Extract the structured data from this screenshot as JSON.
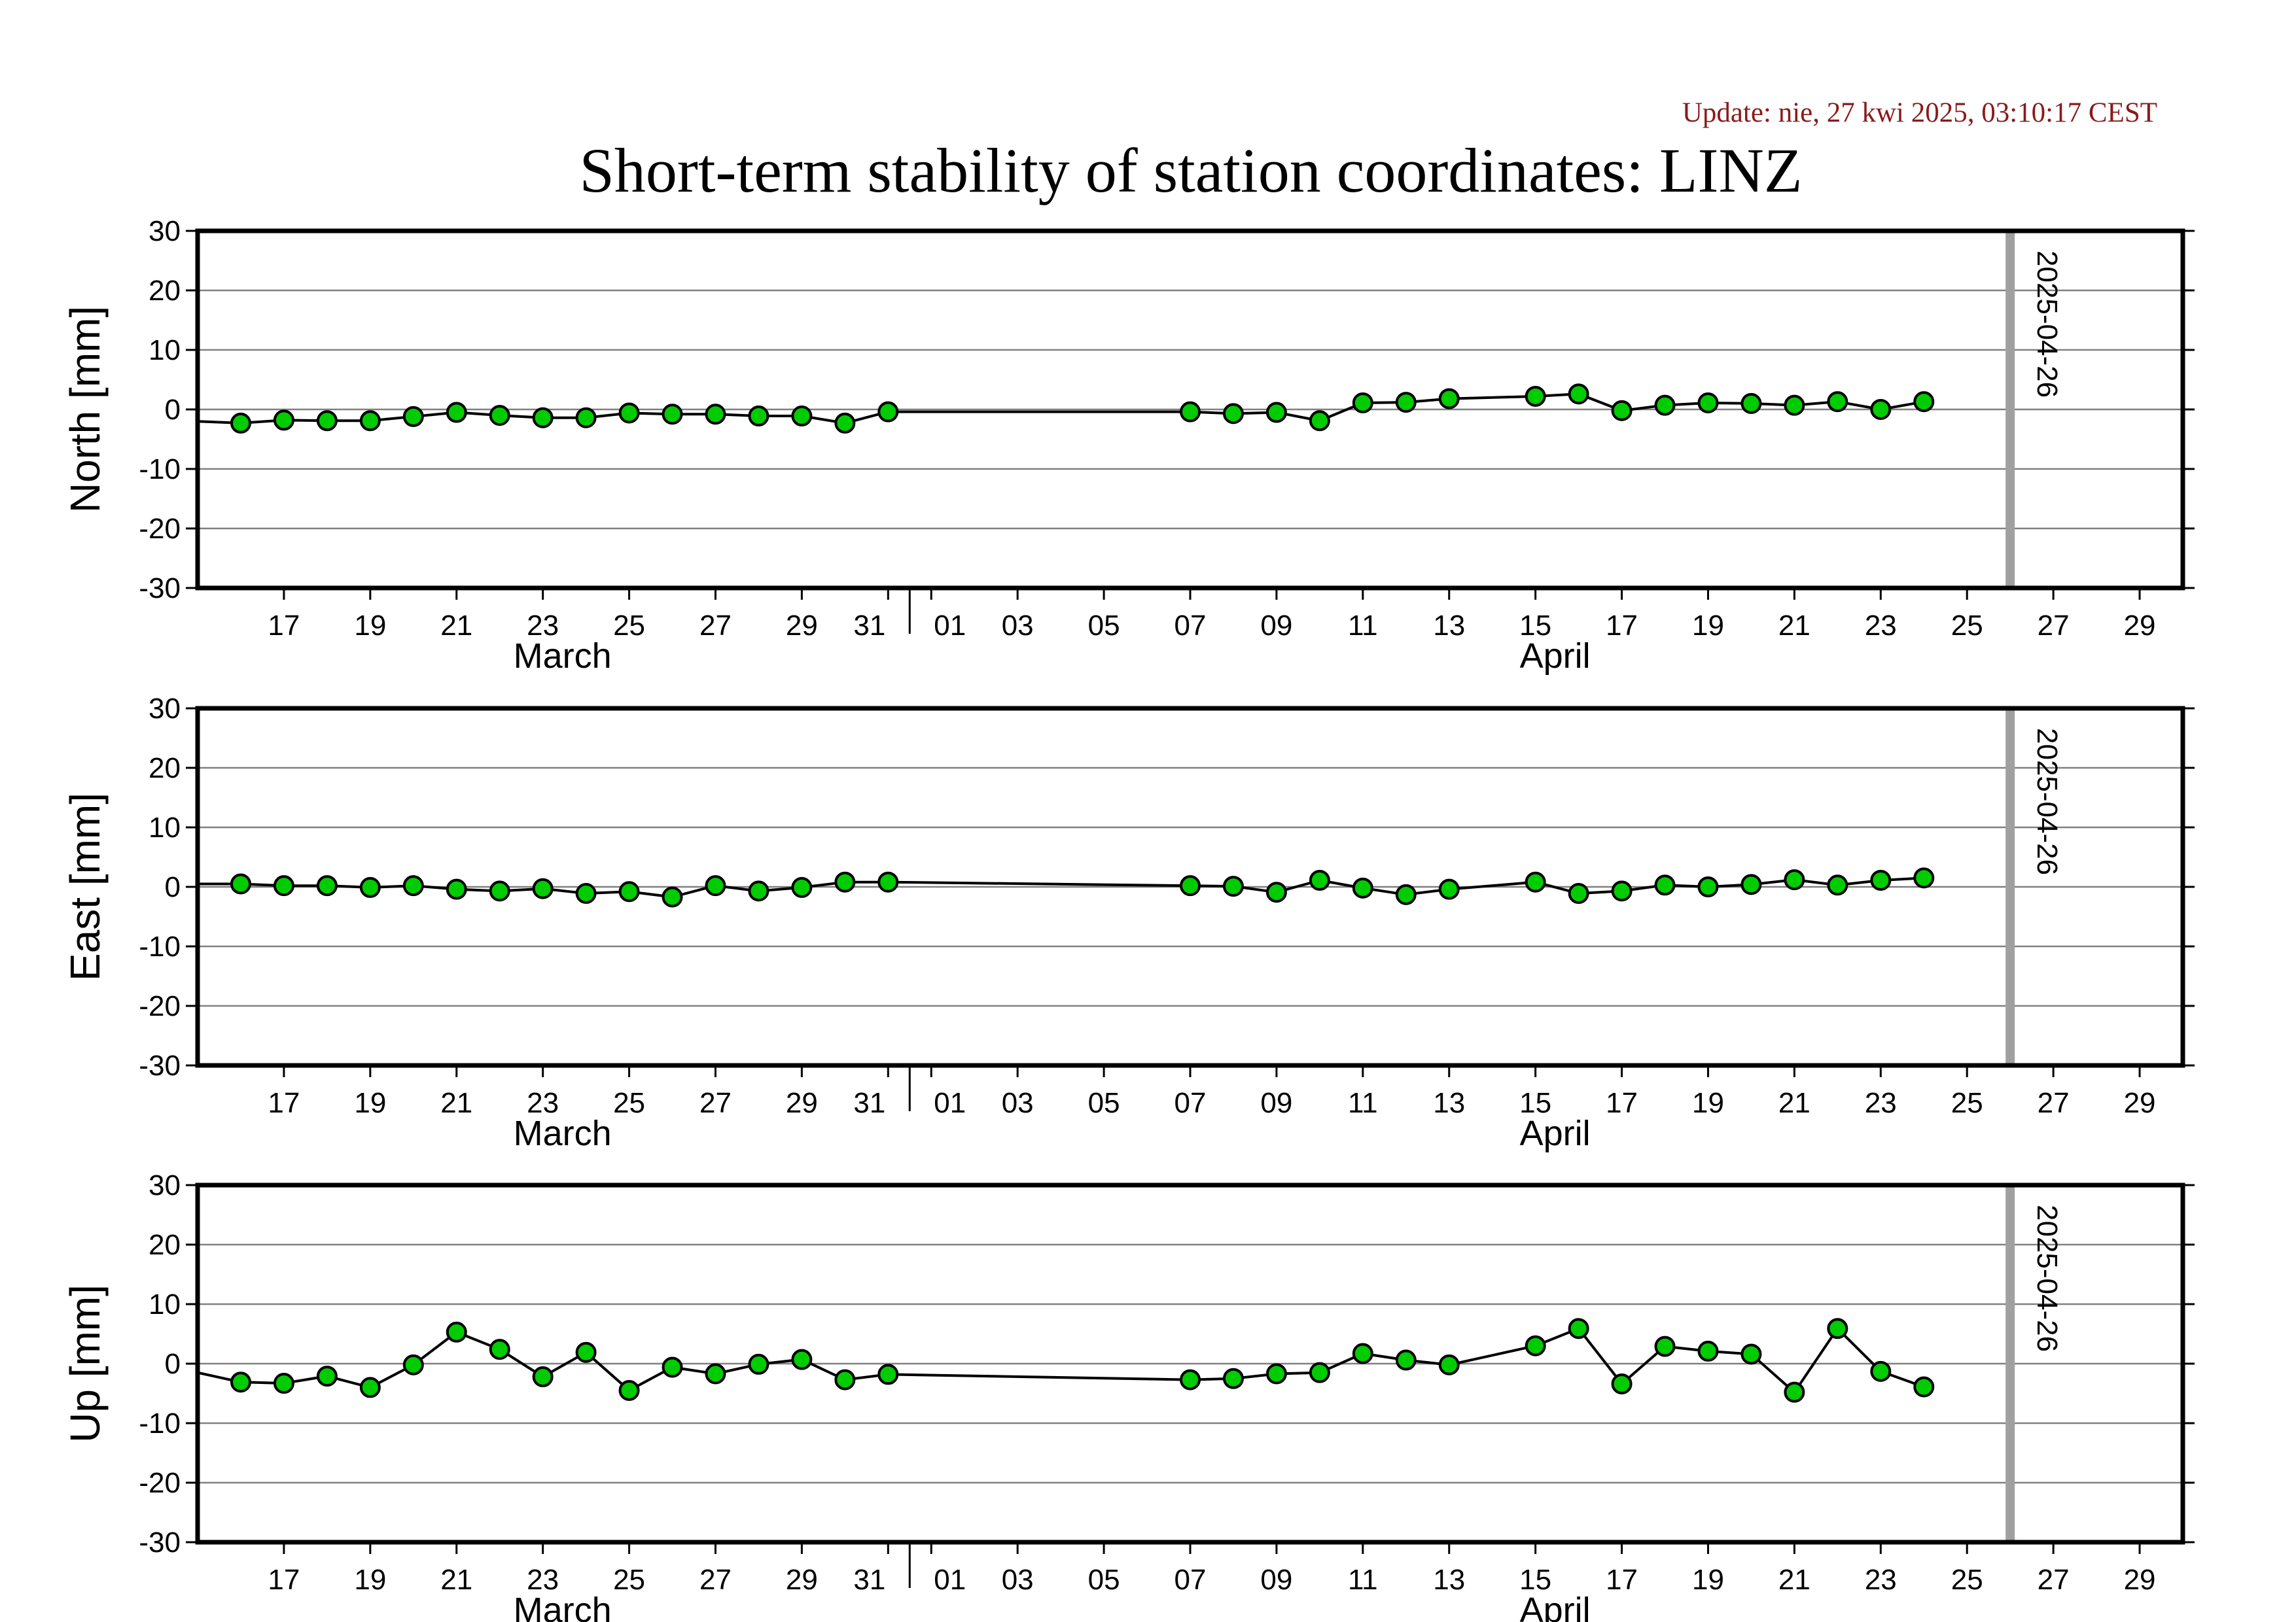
{
  "update_text": "Update: nie, 27 kwi 2025, 03:10:17 CEST",
  "title": "Short-term stability of station coordinates: LINZ",
  "colors": {
    "marker_fill": "#00cc00",
    "marker_stroke": "#000000",
    "line": "#000000",
    "grid": "#808080",
    "date_marker": "#a0a0a0",
    "update_text": "#8b1a1a"
  },
  "chart_data": {
    "type": "line",
    "x_axis": {
      "start": "2025-03-15",
      "end": "2025-04-30",
      "tick_labels": [
        {
          "date": "2025-03-17",
          "label": "17"
        },
        {
          "date": "2025-03-19",
          "label": "19"
        },
        {
          "date": "2025-03-21",
          "label": "21"
        },
        {
          "date": "2025-03-23",
          "label": "23"
        },
        {
          "date": "2025-03-25",
          "label": "25"
        },
        {
          "date": "2025-03-27",
          "label": "27"
        },
        {
          "date": "2025-03-29",
          "label": "29"
        },
        {
          "date": "2025-03-31",
          "label": "31"
        },
        {
          "date": "2025-04-01",
          "label": "01"
        },
        {
          "date": "2025-04-03",
          "label": "03"
        },
        {
          "date": "2025-04-05",
          "label": "05"
        },
        {
          "date": "2025-04-07",
          "label": "07"
        },
        {
          "date": "2025-04-09",
          "label": "09"
        },
        {
          "date": "2025-04-11",
          "label": "11"
        },
        {
          "date": "2025-04-13",
          "label": "13"
        },
        {
          "date": "2025-04-15",
          "label": "15"
        },
        {
          "date": "2025-04-17",
          "label": "17"
        },
        {
          "date": "2025-04-19",
          "label": "19"
        },
        {
          "date": "2025-04-21",
          "label": "21"
        },
        {
          "date": "2025-04-23",
          "label": "23"
        },
        {
          "date": "2025-04-25",
          "label": "25"
        },
        {
          "date": "2025-04-27",
          "label": "27"
        },
        {
          "date": "2025-04-29",
          "label": "29"
        }
      ],
      "month_labels": [
        {
          "date": "2025-03-23",
          "label": "March"
        },
        {
          "date": "2025-04-15",
          "label": "April"
        }
      ],
      "month_boundary": "2025-04-01"
    },
    "date_marker": {
      "date": "2025-04-26",
      "label": "2025-04-26"
    },
    "x": [
      "2025-03-16",
      "2025-03-17",
      "2025-03-18",
      "2025-03-19",
      "2025-03-20",
      "2025-03-21",
      "2025-03-22",
      "2025-03-23",
      "2025-03-24",
      "2025-03-25",
      "2025-03-26",
      "2025-03-27",
      "2025-03-28",
      "2025-03-29",
      "2025-03-30",
      "2025-03-31",
      "2025-04-07",
      "2025-04-08",
      "2025-04-09",
      "2025-04-10",
      "2025-04-11",
      "2025-04-12",
      "2025-04-13",
      "2025-04-15",
      "2025-04-16",
      "2025-04-17",
      "2025-04-18",
      "2025-04-19",
      "2025-04-20",
      "2025-04-21",
      "2025-04-22",
      "2025-04-23",
      "2025-04-24"
    ],
    "panels": [
      {
        "ylabel": "North [mm]",
        "ylim": [
          -30,
          30
        ],
        "yticks": [
          30,
          20,
          10,
          0,
          -10,
          -20,
          -30
        ],
        "grid": true,
        "lead_in": -2,
        "values": [
          -2.3,
          -1.8,
          -1.9,
          -1.9,
          -1.2,
          -0.5,
          -1.0,
          -1.4,
          -1.4,
          -0.6,
          -0.8,
          -0.8,
          -1.1,
          -1.1,
          -2.3,
          -0.4,
          -0.4,
          -0.7,
          -0.5,
          -1.9,
          1.1,
          1.2,
          1.8,
          2.2,
          2.6,
          -0.2,
          0.7,
          1.1,
          1.0,
          0.7,
          1.3,
          0.0,
          1.3
        ]
      },
      {
        "ylabel": "East [mm]",
        "ylim": [
          -30,
          30
        ],
        "yticks": [
          30,
          20,
          10,
          0,
          -10,
          -20,
          -30
        ],
        "grid": true,
        "lead_in": 0.5,
        "values": [
          0.5,
          0.2,
          0.2,
          -0.1,
          0.2,
          -0.4,
          -0.7,
          -0.3,
          -1.1,
          -0.8,
          -1.7,
          0.2,
          -0.7,
          -0.1,
          0.8,
          0.8,
          0.2,
          0.1,
          -0.9,
          1.1,
          -0.2,
          -1.3,
          -0.4,
          0.8,
          -1.1,
          -0.7,
          0.3,
          0.0,
          0.4,
          1.2,
          0.3,
          1.1,
          1.5
        ]
      },
      {
        "ylabel": "Up [mm]",
        "ylim": [
          -30,
          30
        ],
        "yticks": [
          30,
          20,
          10,
          0,
          -10,
          -20,
          -30
        ],
        "grid": true,
        "lead_in": -1.5,
        "values": [
          -3.1,
          -3.3,
          -2.1,
          -4.0,
          -0.2,
          5.3,
          2.4,
          -2.2,
          1.9,
          -4.5,
          -0.6,
          -1.7,
          -0.1,
          0.7,
          -2.7,
          -1.8,
          -2.7,
          -2.5,
          -1.7,
          -1.5,
          1.7,
          0.6,
          -0.2,
          3.0,
          5.9,
          -3.4,
          2.9,
          2.1,
          1.6,
          -4.8,
          5.9,
          -1.3,
          -3.9
        ]
      }
    ]
  }
}
